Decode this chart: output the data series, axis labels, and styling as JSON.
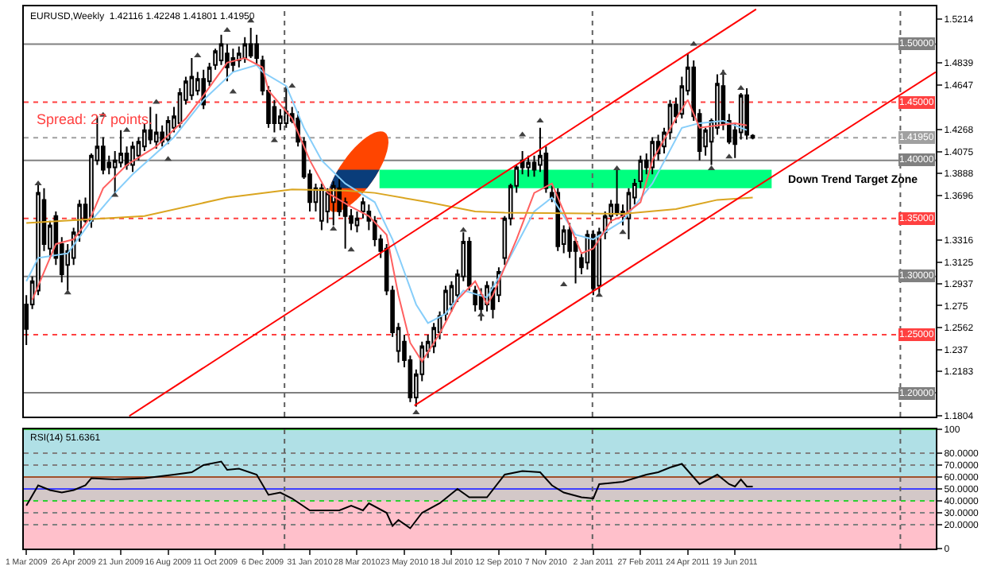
{
  "chart_data": [
    {
      "type": "candlestick",
      "title": "EURUSD,Weekly  1.42116 1.42248 1.41801 1.41950",
      "color": "#000000",
      "x": [
        "2009-03-01",
        "2009-03-08",
        "2009-03-15",
        "2009-03-22",
        "2009-03-29",
        "2009-04-05",
        "2009-04-12",
        "2009-04-19",
        "2009-04-26",
        "2009-05-03",
        "2009-05-10",
        "2009-05-17",
        "2009-05-24",
        "2009-05-31",
        "2009-06-07",
        "2009-06-14",
        "2009-06-21",
        "2009-06-28",
        "2009-07-05",
        "2009-07-12",
        "2009-07-19",
        "2009-07-26",
        "2009-08-02",
        "2009-08-09",
        "2009-08-16",
        "2009-08-23",
        "2009-08-30",
        "2009-09-06",
        "2009-09-13",
        "2009-09-20",
        "2009-09-27",
        "2009-10-04",
        "2009-10-11",
        "2009-10-18",
        "2009-10-25",
        "2009-11-01",
        "2009-11-08",
        "2009-11-15",
        "2009-11-22",
        "2009-11-29",
        "2009-12-06",
        "2009-12-13",
        "2009-12-20",
        "2009-12-27",
        "2010-01-03",
        "2010-01-10",
        "2010-01-17",
        "2010-01-24",
        "2010-01-31",
        "2010-02-07",
        "2010-02-14",
        "2010-02-21",
        "2010-02-28",
        "2010-03-07",
        "2010-03-14",
        "2010-03-21",
        "2010-03-28",
        "2010-04-04",
        "2010-04-11",
        "2010-04-18",
        "2010-04-25",
        "2010-05-02",
        "2010-05-09",
        "2010-05-16",
        "2010-05-23",
        "2010-05-30",
        "2010-06-06",
        "2010-06-13",
        "2010-06-20",
        "2010-06-27",
        "2010-07-04",
        "2010-07-11",
        "2010-07-18",
        "2010-07-25",
        "2010-08-01",
        "2010-08-08",
        "2010-08-15",
        "2010-08-22",
        "2010-08-29",
        "2010-09-05",
        "2010-09-12",
        "2010-09-19",
        "2010-09-26",
        "2010-10-03",
        "2010-10-10",
        "2010-10-17",
        "2010-10-24",
        "2010-10-31",
        "2010-11-07",
        "2010-11-14",
        "2010-11-21",
        "2010-11-28",
        "2010-12-05",
        "2010-12-12",
        "2010-12-19",
        "2010-12-26",
        "2011-01-02",
        "2011-01-09",
        "2011-01-16",
        "2011-01-23",
        "2011-01-30",
        "2011-02-06",
        "2011-02-13",
        "2011-02-20",
        "2011-02-27",
        "2011-03-06",
        "2011-03-13",
        "2011-03-20",
        "2011-03-27",
        "2011-04-03",
        "2011-04-10",
        "2011-04-17",
        "2011-04-24",
        "2011-05-01",
        "2011-05-08",
        "2011-05-15",
        "2011-05-22",
        "2011-05-29",
        "2011-06-05",
        "2011-06-12",
        "2011-06-19",
        "2011-06-26",
        "2011-07-03",
        "2011-07-10"
      ],
      "ohlc": [
        [
          1.276,
          1.284,
          1.241,
          1.255
        ],
        [
          1.276,
          1.3,
          1.272,
          1.296
        ],
        [
          1.288,
          1.38,
          1.284,
          1.372
        ],
        [
          1.366,
          1.376,
          1.322,
          1.328
        ],
        [
          1.324,
          1.348,
          1.316,
          1.344
        ],
        [
          1.352,
          1.356,
          1.31,
          1.316
        ],
        [
          1.328,
          1.334,
          1.295,
          1.302
        ],
        [
          1.31,
          1.328,
          1.288,
          1.322
        ],
        [
          1.316,
          1.342,
          1.31,
          1.338
        ],
        [
          1.336,
          1.366,
          1.33,
          1.362
        ],
        [
          1.362,
          1.368,
          1.346,
          1.348
        ],
        [
          1.348,
          1.406,
          1.342,
          1.404
        ],
        [
          1.4,
          1.438,
          1.396,
          1.412
        ],
        [
          1.412,
          1.42,
          1.388,
          1.392
        ],
        [
          1.398,
          1.404,
          1.388,
          1.394
        ],
        [
          1.394,
          1.408,
          1.372,
          1.4
        ],
        [
          1.398,
          1.426,
          1.394,
          1.406
        ],
        [
          1.406,
          1.412,
          1.392,
          1.396
        ],
        [
          1.396,
          1.416,
          1.39,
          1.412
        ],
        [
          1.404,
          1.42,
          1.4,
          1.416
        ],
        [
          1.412,
          1.432,
          1.408,
          1.426
        ],
        [
          1.426,
          1.446,
          1.414,
          1.418
        ],
        [
          1.416,
          1.44,
          1.41,
          1.424
        ],
        [
          1.424,
          1.43,
          1.412,
          1.416
        ],
        [
          1.418,
          1.438,
          1.414,
          1.434
        ],
        [
          1.428,
          1.446,
          1.424,
          1.438
        ],
        [
          1.432,
          1.462,
          1.428,
          1.458
        ],
        [
          1.452,
          1.472,
          1.448,
          1.468
        ],
        [
          1.456,
          1.488,
          1.452,
          1.472
        ],
        [
          1.46,
          1.476,
          1.456,
          1.47
        ],
        [
          1.47,
          1.478,
          1.444,
          1.448
        ],
        [
          1.468,
          1.484,
          1.464,
          1.48
        ],
        [
          1.482,
          1.496,
          1.478,
          1.494
        ],
        [
          1.486,
          1.508,
          1.482,
          1.5
        ],
        [
          1.492,
          1.5,
          1.468,
          1.48
        ],
        [
          1.488,
          1.496,
          1.476,
          1.482
        ],
        [
          1.486,
          1.498,
          1.48,
          1.492
        ],
        [
          1.488,
          1.506,
          1.484,
          1.5
        ],
        [
          1.5,
          1.514,
          1.488,
          1.49
        ],
        [
          1.5,
          1.508,
          1.482,
          1.488
        ],
        [
          1.486,
          1.49,
          1.456,
          1.46
        ],
        [
          1.46,
          1.464,
          1.428,
          1.432
        ],
        [
          1.446,
          1.452,
          1.424,
          1.432
        ],
        [
          1.432,
          1.444,
          1.426,
          1.438
        ],
        [
          1.432,
          1.464,
          1.428,
          1.442
        ],
        [
          1.44,
          1.446,
          1.432,
          1.434
        ],
        [
          1.436,
          1.442,
          1.412,
          1.416
        ],
        [
          1.416,
          1.42,
          1.384,
          1.386
        ],
        [
          1.388,
          1.392,
          1.356,
          1.364
        ],
        [
          1.364,
          1.38,
          1.356,
          1.376
        ],
        [
          1.348,
          1.38,
          1.34,
          1.376
        ],
        [
          1.356,
          1.376,
          1.346,
          1.372
        ],
        [
          1.364,
          1.382,
          1.344,
          1.378
        ],
        [
          1.376,
          1.384,
          1.352,
          1.356
        ],
        [
          1.364,
          1.368,
          1.324,
          1.352
        ],
        [
          1.352,
          1.358,
          1.34,
          1.346
        ],
        [
          1.344,
          1.356,
          1.338,
          1.35
        ],
        [
          1.356,
          1.368,
          1.35,
          1.364
        ],
        [
          1.356,
          1.362,
          1.34,
          1.348
        ],
        [
          1.348,
          1.352,
          1.326,
          1.332
        ],
        [
          1.332,
          1.336,
          1.316,
          1.322
        ],
        [
          1.324,
          1.328,
          1.284,
          1.288
        ],
        [
          1.288,
          1.292,
          1.248,
          1.252
        ],
        [
          1.236,
          1.26,
          1.226,
          1.256
        ],
        [
          1.244,
          1.25,
          1.222,
          1.228
        ],
        [
          1.228,
          1.232,
          1.192,
          1.196
        ],
        [
          1.196,
          1.22,
          1.188,
          1.216
        ],
        [
          1.216,
          1.244,
          1.21,
          1.24
        ],
        [
          1.236,
          1.25,
          1.23,
          1.244
        ],
        [
          1.24,
          1.26,
          1.234,
          1.256
        ],
        [
          1.252,
          1.27,
          1.246,
          1.266
        ],
        [
          1.268,
          1.292,
          1.262,
          1.288
        ],
        [
          1.276,
          1.296,
          1.27,
          1.292
        ],
        [
          1.284,
          1.306,
          1.278,
          1.302
        ],
        [
          1.3,
          1.338,
          1.296,
          1.33
        ],
        [
          1.33,
          1.334,
          1.288,
          1.292
        ],
        [
          1.288,
          1.292,
          1.27,
          1.276
        ],
        [
          1.284,
          1.29,
          1.262,
          1.272
        ],
        [
          1.276,
          1.296,
          1.27,
          1.292
        ],
        [
          1.29,
          1.296,
          1.264,
          1.272
        ],
        [
          1.284,
          1.308,
          1.278,
          1.304
        ],
        [
          1.316,
          1.352,
          1.31,
          1.35
        ],
        [
          1.35,
          1.38,
          1.344,
          1.378
        ],
        [
          1.378,
          1.396,
          1.372,
          1.394
        ],
        [
          1.4,
          1.408,
          1.388,
          1.394
        ],
        [
          1.394,
          1.404,
          1.386,
          1.398
        ],
        [
          1.398,
          1.404,
          1.386,
          1.392
        ],
        [
          1.396,
          1.428,
          1.39,
          1.404
        ],
        [
          1.406,
          1.412,
          1.372,
          1.376
        ],
        [
          1.372,
          1.378,
          1.364,
          1.368
        ],
        [
          1.372,
          1.376,
          1.322,
          1.326
        ],
        [
          1.328,
          1.344,
          1.32,
          1.34
        ],
        [
          1.34,
          1.346,
          1.316,
          1.322
        ],
        [
          1.33,
          1.334,
          1.294,
          1.322
        ],
        [
          1.316,
          1.32,
          1.302,
          1.308
        ],
        [
          1.312,
          1.34,
          1.306,
          1.336
        ],
        [
          1.336,
          1.34,
          1.284,
          1.29
        ],
        [
          1.292,
          1.342,
          1.286,
          1.338
        ],
        [
          1.338,
          1.356,
          1.332,
          1.352
        ],
        [
          1.352,
          1.366,
          1.346,
          1.362
        ],
        [
          1.362,
          1.392,
          1.352,
          1.354
        ],
        [
          1.356,
          1.362,
          1.344,
          1.352
        ],
        [
          1.35,
          1.376,
          1.332,
          1.372
        ],
        [
          1.368,
          1.384,
          1.362,
          1.38
        ],
        [
          1.382,
          1.404,
          1.376,
          1.4
        ],
        [
          1.4,
          1.406,
          1.388,
          1.394
        ],
        [
          1.394,
          1.42,
          1.388,
          1.416
        ],
        [
          1.416,
          1.422,
          1.4,
          1.406
        ],
        [
          1.412,
          1.428,
          1.406,
          1.424
        ],
        [
          1.424,
          1.452,
          1.418,
          1.448
        ],
        [
          1.448,
          1.454,
          1.432,
          1.438
        ],
        [
          1.44,
          1.472,
          1.436,
          1.464
        ],
        [
          1.46,
          1.492,
          1.456,
          1.48
        ],
        [
          1.48,
          1.486,
          1.434,
          1.438
        ],
        [
          1.44,
          1.444,
          1.4,
          1.408
        ],
        [
          1.412,
          1.428,
          1.404,
          1.426
        ],
        [
          1.416,
          1.436,
          1.396,
          1.434
        ],
        [
          1.428,
          1.474,
          1.422,
          1.466
        ],
        [
          1.464,
          1.478,
          1.426,
          1.432
        ],
        [
          1.434,
          1.44,
          1.414,
          1.416
        ],
        [
          1.426,
          1.432,
          1.402,
          1.414
        ],
        [
          1.424,
          1.458,
          1.418,
          1.456
        ],
        [
          1.456,
          1.462,
          1.418,
          1.422
        ],
        [
          1.42116,
          1.42248,
          1.41801,
          1.4195
        ]
      ],
      "series": [
        {
          "type": "line",
          "color": "#87cefa",
          "x": [
            "2009-03-01",
            "2009-03-15",
            "2009-04-19",
            "2009-05-17",
            "2009-06-14",
            "2009-07-05",
            "2009-08-23",
            "2009-09-27",
            "2009-11-01",
            "2009-11-29",
            "2009-12-06",
            "2010-01-03",
            "2010-01-24",
            "2010-02-14",
            "2010-03-14",
            "2010-04-18",
            "2010-05-09",
            "2010-06-06",
            "2010-06-20",
            "2010-07-11",
            "2010-08-01",
            "2010-08-29",
            "2010-09-19",
            "2010-10-24",
            "2010-11-14",
            "2010-12-12",
            "2011-01-02",
            "2011-02-06",
            "2011-03-13",
            "2011-04-17",
            "2011-05-08",
            "2011-06-05",
            "2011-07-03"
          ],
          "values": [
            1.296,
            1.316,
            1.32,
            1.348,
            1.372,
            1.388,
            1.42,
            1.452,
            1.476,
            1.482,
            1.476,
            1.464,
            1.428,
            1.4,
            1.38,
            1.364,
            1.332,
            1.276,
            1.26,
            1.268,
            1.288,
            1.282,
            1.308,
            1.356,
            1.368,
            1.336,
            1.332,
            1.348,
            1.38,
            1.428,
            1.432,
            1.434,
            1.426
          ]
        },
        {
          "type": "line",
          "color": "#ff6060",
          "x": [
            "2009-03-08",
            "2009-04-05",
            "2009-04-26",
            "2009-05-17",
            "2009-05-31",
            "2009-06-28",
            "2009-08-02",
            "2009-09-06",
            "2009-09-27",
            "2009-10-25",
            "2009-11-15",
            "2009-12-06",
            "2009-12-13",
            "2010-01-10",
            "2010-01-31",
            "2010-02-21",
            "2010-03-21",
            "2010-04-11",
            "2010-05-02",
            "2010-05-16",
            "2010-05-30",
            "2010-06-13",
            "2010-07-04",
            "2010-07-25",
            "2010-08-15",
            "2010-08-29",
            "2010-09-05",
            "2010-10-03",
            "2010-10-24",
            "2010-11-14",
            "2010-11-28",
            "2010-12-19",
            "2011-01-02",
            "2011-01-23",
            "2011-02-06",
            "2011-02-27",
            "2011-03-13",
            "2011-04-10",
            "2011-04-24",
            "2011-05-08",
            "2011-05-29",
            "2011-06-19",
            "2011-07-03"
          ],
          "values": [
            1.28,
            1.328,
            1.332,
            1.352,
            1.376,
            1.396,
            1.412,
            1.436,
            1.456,
            1.484,
            1.488,
            1.48,
            1.46,
            1.436,
            1.4,
            1.372,
            1.36,
            1.352,
            1.336,
            1.284,
            1.243,
            1.227,
            1.251,
            1.28,
            1.296,
            1.276,
            1.284,
            1.332,
            1.372,
            1.38,
            1.356,
            1.32,
            1.324,
            1.348,
            1.352,
            1.364,
            1.4,
            1.436,
            1.452,
            1.428,
            1.43,
            1.432,
            1.43
          ]
        },
        {
          "type": "line",
          "color": "#daa520",
          "x": [
            "2009-03-01",
            "2009-07-19",
            "2009-10-25",
            "2010-01-10",
            "2010-03-14",
            "2010-04-18",
            "2010-06-20",
            "2010-08-15",
            "2010-09-19",
            "2011-02-06",
            "2011-04-10",
            "2011-05-29",
            "2011-07-10"
          ],
          "values": [
            1.346,
            1.352,
            1.368,
            1.375,
            1.374,
            1.372,
            1.364,
            1.356,
            1.355,
            1.354,
            1.358,
            1.366,
            1.368
          ]
        },
        {
          "type": "line",
          "color": "#ff0000",
          "x": [
            "2009-07-01",
            "2011-07-14"
          ],
          "values": [
            1.18,
            1.53
          ]
        },
        {
          "type": "line",
          "color": "#ff0000",
          "x": [
            "2010-06-04",
            "2012-02-12"
          ],
          "values": [
            1.189,
            1.476
          ]
        },
        {
          "type": "scatter",
          "marker": "triangle",
          "color": "#404040",
          "x": [
            "2009-03-15",
            "2009-05-31",
            "2009-06-28",
            "2009-08-02",
            "2009-09-20",
            "2009-10-25",
            "2009-11-22",
            "2010-01-10",
            "2010-08-01",
            "2010-10-10",
            "2010-10-31",
            "2011-01-30",
            "2011-05-01",
            "2011-06-05",
            "2011-06-26"
          ],
          "values": [
            1.38,
            1.439,
            1.426,
            1.45,
            1.49,
            1.512,
            1.52,
            1.464,
            1.34,
            1.422,
            1.434,
            1.393,
            1.5,
            1.475,
            1.462
          ]
        },
        {
          "type": "scatter",
          "marker": "triangle",
          "color": "#404040",
          "x": [
            "2009-04-19",
            "2009-06-14",
            "2009-08-16",
            "2009-11-01",
            "2009-12-20",
            "2010-02-28",
            "2010-03-21",
            "2010-06-06",
            "2010-08-22",
            "2010-11-28",
            "2011-01-09",
            "2011-02-06",
            "2011-05-22",
            "2011-06-12"
          ],
          "values": [
            1.286,
            1.37,
            1.401,
            1.459,
            1.417,
            1.341,
            1.323,
            1.183,
            1.267,
            1.293,
            1.284,
            1.338,
            1.393,
            1.403
          ]
        }
      ],
      "xlim": [
        "2009-02-26",
        "2012-02-12"
      ],
      "ylim": [
        1.1795,
        1.5325
      ],
      "yticks": [
        1.5214,
        1.4839,
        1.4647,
        1.4268,
        1.4075,
        1.3888,
        1.3696,
        1.3316,
        1.3125,
        1.2937,
        1.275,
        1.2562,
        1.237,
        1.2183,
        1.1804
      ],
      "tick_labels": "y",
      "grid": false,
      "ref_lines": [
        {
          "axis": "y",
          "value": 1.5,
          "label": "1.50000",
          "color": "#808080",
          "line_style": "solid"
        },
        {
          "axis": "y",
          "value": 1.45,
          "label": "1.45000",
          "color": "#ff4040",
          "line_style": "dotted"
        },
        {
          "axis": "y",
          "value": 1.4195,
          "label": "1.41950",
          "color": "#a0a0a0",
          "line_style": "dotted"
        },
        {
          "axis": "y",
          "value": 1.4,
          "label": "1.40000",
          "color": "#808080",
          "line_style": "solid"
        },
        {
          "axis": "y",
          "value": 1.35,
          "label": "1.35000",
          "color": "#ff4040",
          "line_style": "dotted"
        },
        {
          "axis": "y",
          "value": 1.3,
          "label": "1.30000",
          "color": "#808080",
          "line_style": "solid"
        },
        {
          "axis": "y",
          "value": 1.25,
          "label": "1.25000",
          "color": "#ff4040",
          "line_style": "dotted"
        },
        {
          "axis": "y",
          "value": 1.2,
          "label": "1.20000",
          "color": "#808080",
          "line_style": "solid"
        },
        {
          "axis": "x",
          "value": "2010-01-01",
          "color": "#606060",
          "line_style": "dotted"
        },
        {
          "axis": "x",
          "value": "2011-01-01",
          "color": "#606060",
          "line_style": "dotted"
        },
        {
          "axis": "x",
          "value": "2012-01-01",
          "color": "#606060",
          "line_style": "dotted"
        }
      ],
      "bands": [
        {
          "axis": "y",
          "from": 1.376,
          "to": 1.392,
          "label": "Down Trend Target Zone",
          "color": "#00ff7f"
        }
      ],
      "annotations": [
        "Spread: 27 points."
      ]
    },
    {
      "type": "line",
      "title": "RSI(14) 51.6361",
      "series": [
        {
          "color": "#000000",
          "x": [
            "2009-03-01",
            "2009-03-15",
            "2009-03-29",
            "2009-04-12",
            "2009-04-26",
            "2009-05-10",
            "2009-05-17",
            "2009-06-14",
            "2009-07-19",
            "2009-08-23",
            "2009-09-13",
            "2009-09-27",
            "2009-10-18",
            "2009-10-25",
            "2009-11-08",
            "2009-11-29",
            "2009-12-13",
            "2009-12-27",
            "2010-01-10",
            "2010-01-31",
            "2010-03-07",
            "2010-03-21",
            "2010-04-04",
            "2010-04-11",
            "2010-05-02",
            "2010-05-09",
            "2010-05-16",
            "2010-05-30",
            "2010-06-13",
            "2010-07-04",
            "2010-07-25",
            "2010-08-08",
            "2010-08-29",
            "2010-09-19",
            "2010-10-10",
            "2010-10-31",
            "2010-11-14",
            "2010-11-28",
            "2010-12-19",
            "2011-01-02",
            "2011-01-09",
            "2011-02-06",
            "2011-03-06",
            "2011-03-20",
            "2011-04-03",
            "2011-04-17",
            "2011-05-08",
            "2011-05-29",
            "2011-06-12",
            "2011-06-19",
            "2011-06-26",
            "2011-07-03",
            "2011-07-10"
          ],
          "values": [
            36,
            53,
            49,
            47,
            49,
            53,
            59,
            58,
            59,
            62,
            64,
            70,
            73,
            66,
            67,
            62,
            45,
            47,
            42,
            32,
            32,
            36,
            32,
            38,
            30,
            19,
            24,
            17,
            30,
            38,
            50,
            43,
            43,
            62,
            65,
            64,
            53,
            47,
            43,
            42,
            54,
            56,
            62,
            64,
            68,
            71,
            54,
            62,
            54,
            52,
            58,
            52,
            52
          ]
        }
      ],
      "xlim": [
        "2009-02-26",
        "2012-02-12"
      ],
      "ylim": [
        0,
        100
      ],
      "xticks": [
        {
          "value": "2009-03-01",
          "label": "1 Mar 2009"
        },
        {
          "value": "2009-04-26",
          "label": "26 Apr 2009"
        },
        {
          "value": "2009-06-21",
          "label": "21 Jun 2009"
        },
        {
          "value": "2009-08-16",
          "label": "16 Aug 2009"
        },
        {
          "value": "2009-10-11",
          "label": "11 Oct 2009"
        },
        {
          "value": "2009-12-06",
          "label": "6 Dec 2009"
        },
        {
          "value": "2010-01-31",
          "label": "31 Jan 2010"
        },
        {
          "value": "2010-03-28",
          "label": "28 Mar 2010"
        },
        {
          "value": "2010-05-23",
          "label": "23 May 2010"
        },
        {
          "value": "2010-07-18",
          "label": "18 Jul 2010"
        },
        {
          "value": "2010-09-12",
          "label": "12 Sep 2010"
        },
        {
          "value": "2010-11-07",
          "label": "7 Nov 2010"
        },
        {
          "value": "2011-01-02",
          "label": "2 Jan 2011"
        },
        {
          "value": "2011-02-27",
          "label": "27 Feb 2011"
        },
        {
          "value": "2011-04-24",
          "label": "24 Apr 2011"
        },
        {
          "value": "2011-06-19",
          "label": "19 Jun 2011"
        }
      ],
      "yticks": [
        100,
        {
          "value": 80,
          "label": "80.0000"
        },
        {
          "value": 70,
          "label": "70.0000"
        },
        {
          "value": 60,
          "label": "60.0000"
        },
        {
          "value": 50,
          "label": "50.0000"
        },
        {
          "value": 40,
          "label": "40.0000"
        },
        {
          "value": 30,
          "label": "30.0000"
        },
        {
          "value": 20,
          "label": "20.0000"
        },
        0
      ],
      "grid": false,
      "bands": [
        {
          "axis": "y",
          "from": 60,
          "to": 100,
          "color": "#b0e0e6"
        },
        {
          "axis": "y",
          "from": 40,
          "to": 60,
          "color": "#d3c8c8"
        },
        {
          "axis": "y",
          "from": 0,
          "to": 40,
          "color": "#ffc0cb"
        }
      ],
      "ref_lines": [
        {
          "axis": "y",
          "value": 100,
          "color": "#32cd32",
          "line_style": "solid"
        },
        {
          "axis": "y",
          "value": 60,
          "color": "#a0522d",
          "line_style": "solid"
        },
        {
          "axis": "y",
          "value": 50,
          "color": "#4040ff",
          "line_style": "solid"
        },
        {
          "axis": "y",
          "value": 40,
          "color": "#32cd32",
          "line_style": "dotted"
        },
        {
          "axis": "y",
          "value": 80,
          "color": "#808080",
          "line_style": "dotted"
        },
        {
          "axis": "y",
          "value": 70,
          "color": "#808080",
          "line_style": "dotted"
        },
        {
          "axis": "y",
          "value": 30,
          "color": "#808080",
          "line_style": "dotted"
        },
        {
          "axis": "y",
          "value": 20,
          "color": "#808080",
          "line_style": "dotted"
        },
        {
          "axis": "x",
          "value": "2010-01-01",
          "color": "#606060",
          "line_style": "dotted"
        },
        {
          "axis": "x",
          "value": "2011-01-01",
          "color": "#606060",
          "line_style": "dotted"
        },
        {
          "axis": "x",
          "value": "2012-01-01",
          "color": "#606060",
          "line_style": "dotted"
        }
      ]
    }
  ]
}
